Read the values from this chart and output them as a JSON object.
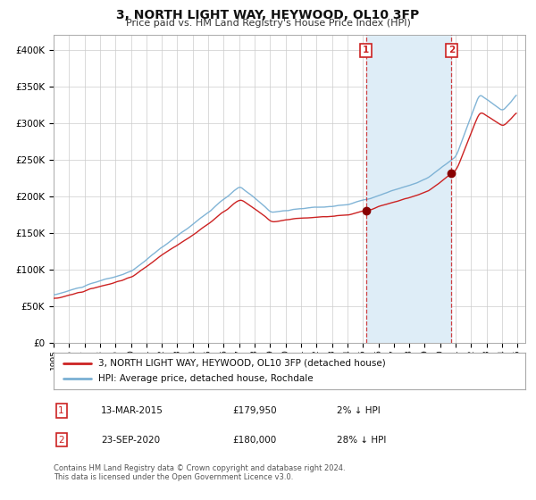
{
  "title": "3, NORTH LIGHT WAY, HEYWOOD, OL10 3FP",
  "subtitle": "Price paid vs. HM Land Registry's House Price Index (HPI)",
  "legend_entries": [
    "3, NORTH LIGHT WAY, HEYWOOD, OL10 3FP (detached house)",
    "HPI: Average price, detached house, Rochdale"
  ],
  "transaction1": {
    "label": "1",
    "date": "13-MAR-2015",
    "price": 179950,
    "pct": "2%",
    "dir": "↓"
  },
  "transaction2": {
    "label": "2",
    "date": "23-SEP-2020",
    "price": 180000,
    "pct": "28%",
    "dir": "↓"
  },
  "transaction1_year": 2015.2,
  "transaction2_year": 2020.73,
  "hpi_color": "#7ab0d4",
  "price_paid_color": "#cc2222",
  "dashed_line_color": "#cc2222",
  "marker_color": "#880000",
  "shaded_region_color": "#deedf7",
  "background_color": "#ffffff",
  "grid_color": "#cccccc",
  "annotation_box_color": "#cc2222",
  "footnote": "Contains HM Land Registry data © Crown copyright and database right 2024.\nThis data is licensed under the Open Government Licence v3.0.",
  "ylim": [
    0,
    420000
  ],
  "yticks": [
    0,
    50000,
    100000,
    150000,
    200000,
    250000,
    300000,
    350000,
    400000
  ],
  "ytick_labels": [
    "£0",
    "£50K",
    "£100K",
    "£150K",
    "£200K",
    "£250K",
    "£300K",
    "£350K",
    "£400K"
  ],
  "xmin": 1995,
  "xmax": 2025.5
}
